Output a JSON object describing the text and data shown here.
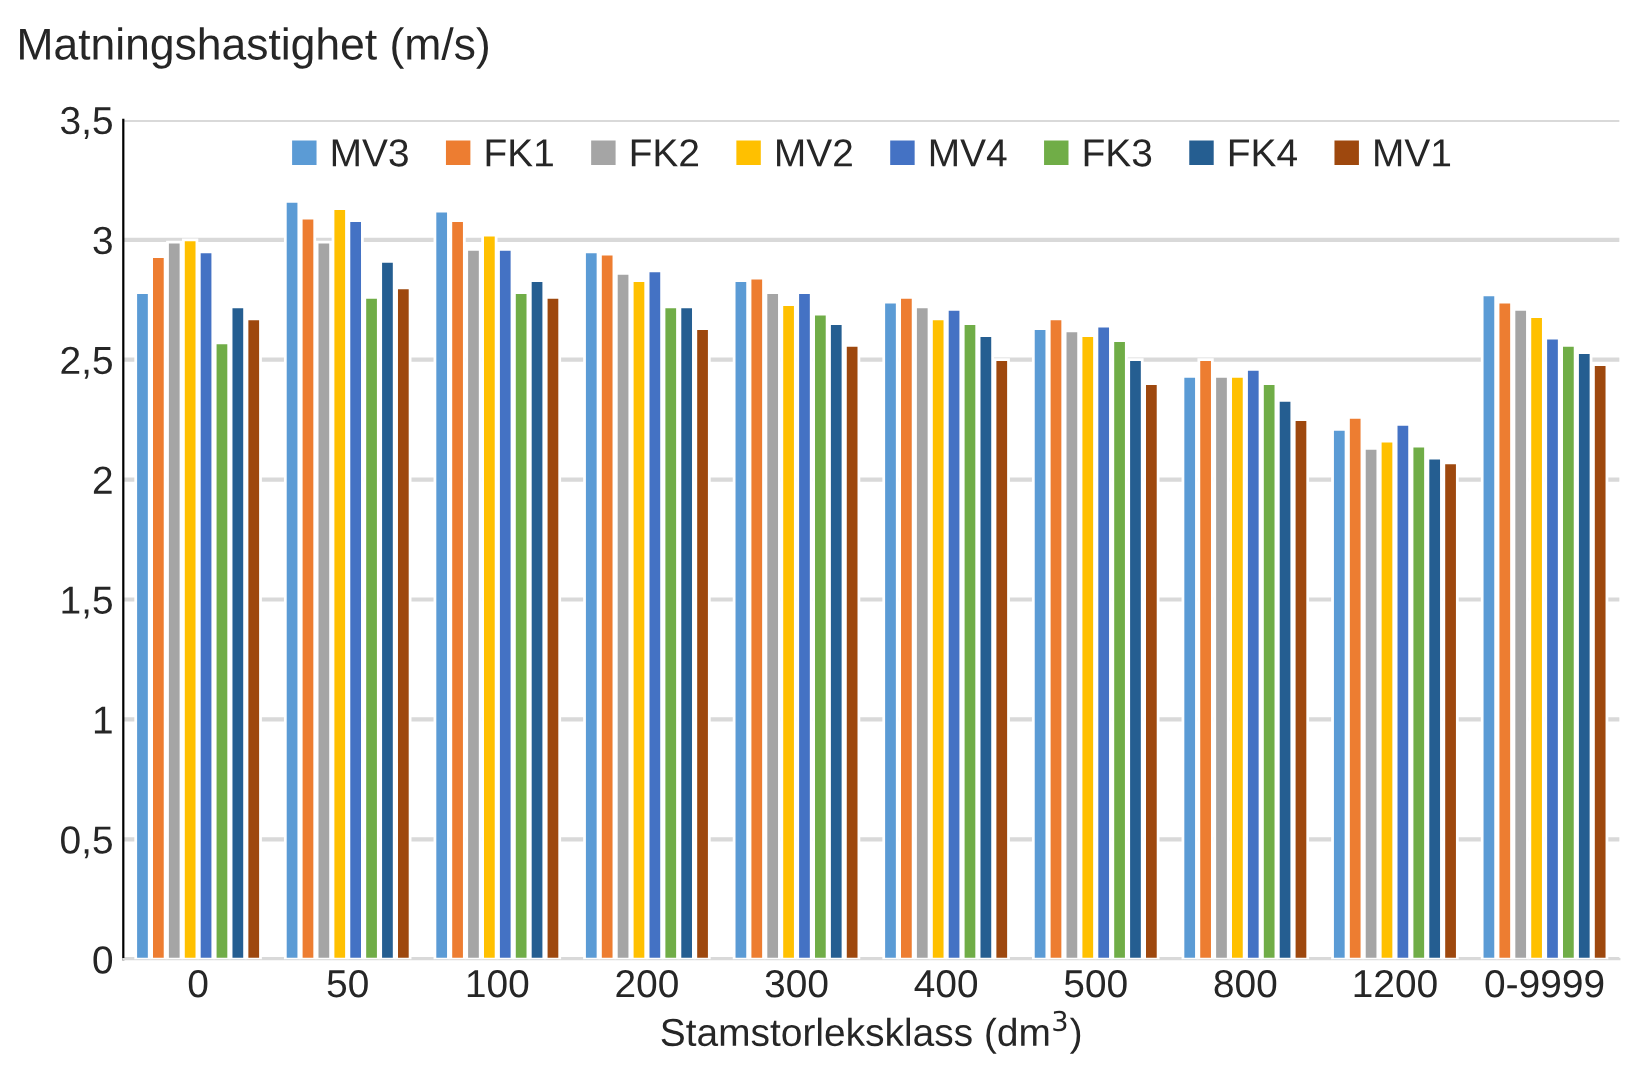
{
  "chart_data": {
    "type": "bar",
    "ylabel": "Matningshastighet (m/s)",
    "xlabel": "Stamstorleksklass (dm$^{3}$)",
    "categories": [
      "0",
      "50",
      "100",
      "200",
      "300",
      "400",
      "500",
      "800",
      "1200",
      "0-9999"
    ],
    "series": [
      {
        "name": "MV3",
        "color": "#5b9bd5",
        "values": [
          2.78,
          3.16,
          3.12,
          2.95,
          2.83,
          2.74,
          2.63,
          2.43,
          2.21,
          2.77
        ]
      },
      {
        "name": "FK1",
        "color": "#ed7d31",
        "values": [
          2.93,
          3.09,
          3.08,
          2.94,
          2.84,
          2.76,
          2.67,
          2.5,
          2.26,
          2.74
        ]
      },
      {
        "name": "FK2",
        "color": "#a5a5a5",
        "values": [
          2.99,
          2.99,
          2.96,
          2.86,
          2.78,
          2.72,
          2.62,
          2.43,
          2.13,
          2.71
        ]
      },
      {
        "name": "MV2",
        "color": "#ffc000",
        "values": [
          3.0,
          3.13,
          3.02,
          2.83,
          2.73,
          2.67,
          2.6,
          2.43,
          2.16,
          2.68
        ]
      },
      {
        "name": "MV4",
        "color": "#4472c4",
        "values": [
          2.95,
          3.08,
          2.96,
          2.87,
          2.78,
          2.71,
          2.64,
          2.46,
          2.23,
          2.59
        ]
      },
      {
        "name": "FK3",
        "color": "#70ad47",
        "values": [
          2.57,
          2.76,
          2.78,
          2.72,
          2.69,
          2.65,
          2.58,
          2.4,
          2.14,
          2.56
        ]
      },
      {
        "name": "FK4",
        "color": "#255e91",
        "values": [
          2.72,
          2.91,
          2.83,
          2.72,
          2.65,
          2.6,
          2.5,
          2.33,
          2.09,
          2.53
        ]
      },
      {
        "name": "MV1",
        "color": "#9e480e",
        "values": [
          2.67,
          2.8,
          2.76,
          2.63,
          2.56,
          2.5,
          2.4,
          2.25,
          2.07,
          2.48
        ]
      }
    ],
    "ylim": [
      0,
      3.5
    ],
    "yticks": [
      0,
      {
        "value": 0.5,
        "label": "0,5"
      },
      1,
      {
        "value": 1.5,
        "label": "1,5"
      },
      2,
      {
        "value": 2.5,
        "label": "2,5"
      },
      3,
      {
        "value": 3.5,
        "label": "3,5"
      }
    ],
    "grid": "y",
    "legend": "top"
  }
}
